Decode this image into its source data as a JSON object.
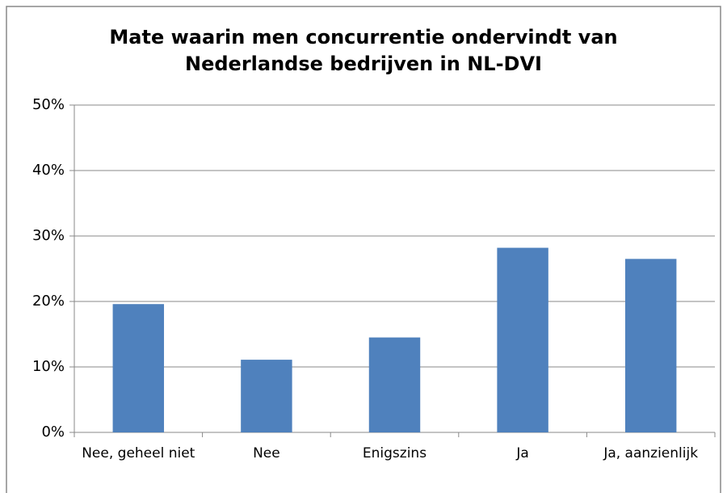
{
  "chart_data": {
    "type": "bar",
    "title": "Mate waarin men concurrentie ondervindt van Nederlandse bedrijven in NL-DVI",
    "categories": [
      "Nee, geheel niet",
      "Nee",
      "Enigszins",
      "Ja",
      "Ja, aanzienlijk"
    ],
    "values": [
      19.6,
      11.1,
      14.5,
      28.2,
      26.5
    ],
    "color": "#4f81bd",
    "ylim": [
      0,
      50
    ],
    "yticks": [
      {
        "value": 0,
        "label": "0%"
      },
      {
        "value": 10,
        "label": "10%"
      },
      {
        "value": 20,
        "label": "20%"
      },
      {
        "value": 30,
        "label": "30%"
      },
      {
        "value": 40,
        "label": "40%"
      },
      {
        "value": 50,
        "label": "50%"
      }
    ],
    "grid": true
  }
}
